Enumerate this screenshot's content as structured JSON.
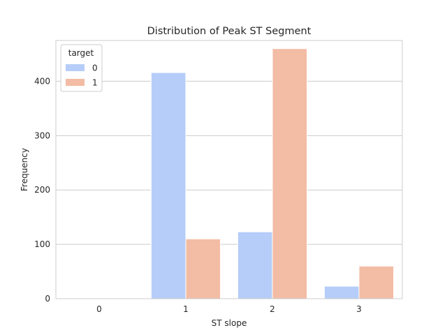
{
  "chart_data": {
    "type": "bar",
    "title": "Distribution of Peak ST Segment",
    "xlabel": "ST slope",
    "ylabel": "Frequency",
    "categories": [
      "0",
      "1",
      "2",
      "3"
    ],
    "ylim": [
      0,
      475
    ],
    "yticks": [
      0,
      100,
      200,
      300,
      400
    ],
    "grid": true,
    "legend": {
      "title": "target",
      "placement": "top-left"
    },
    "series": [
      {
        "name": "0",
        "color": "#b5cdf8",
        "values": [
          0,
          416,
          123,
          23
        ]
      },
      {
        "name": "1",
        "color": "#f3bca4",
        "values": [
          0,
          110,
          460,
          60
        ]
      }
    ]
  }
}
